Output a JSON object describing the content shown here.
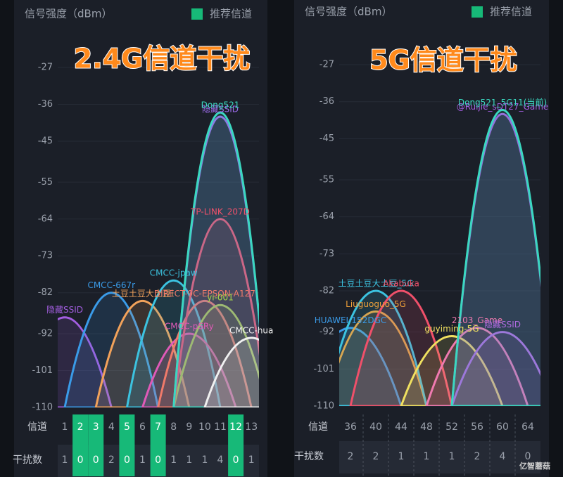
{
  "chart_data": [
    {
      "type": "wifi",
      "header_label": "信号强度（dBm）",
      "legend_label": "推荐信道",
      "legend_color": "#17b978",
      "title": "2.4G信道干扰",
      "ylim": [
        -110,
        -27
      ],
      "yticks": [
        -27,
        -36,
        -45,
        -55,
        -64,
        -73,
        -82,
        -92,
        -101,
        -110
      ],
      "channel_label": "信道",
      "interference_label": "干扰数",
      "channels": [
        1,
        2,
        3,
        4,
        5,
        6,
        7,
        8,
        9,
        10,
        11,
        12,
        13
      ],
      "interference": [
        1,
        0,
        0,
        2,
        0,
        1,
        0,
        1,
        1,
        1,
        4,
        0,
        1
      ],
      "recommended": [
        2,
        3,
        5,
        7,
        12
      ],
      "networks": [
        {
          "name": "隐藏SSID",
          "color": "#a35ee0",
          "channel": 1,
          "signal": -88
        },
        {
          "name": "CMCC-667r",
          "color": "#3a9be8",
          "channel": 4,
          "signal": -82
        },
        {
          "name": "土豆土豆大土豆i",
          "color": "#f2a25a",
          "channel": 6,
          "signal": -84
        },
        {
          "name": "CMCC-jpaw",
          "color": "#3cc3e0",
          "channel": 8,
          "signal": -79
        },
        {
          "name": "CMCC-pSRy",
          "color": "#e05ab8",
          "channel": 9,
          "signal": -92
        },
        {
          "name": "DIRECT-9C-EPSON-A127",
          "color": "#f07a6a",
          "channel": 10,
          "signal": -84
        },
        {
          "name": "yi-001",
          "color": "#a8d84a",
          "channel": 11,
          "signal": -85
        },
        {
          "name": "TP-LINK_207D",
          "color": "#f0506a",
          "channel": 11,
          "signal": -64
        },
        {
          "name": "隐藏SSID",
          "color": "#9a6ae8",
          "channel": 11,
          "signal": -39
        },
        {
          "name": "Dong521",
          "color": "#3ad8c0",
          "channel": 11,
          "signal": -38
        },
        {
          "name": "CMCC-hua",
          "color": "#f0f0f0",
          "channel": 13,
          "signal": -93
        }
      ]
    },
    {
      "type": "wifi",
      "header_label": "信号强度（dBm）",
      "legend_label": "推荐信道",
      "legend_color": "#17b978",
      "title": "5G信道干扰",
      "ylim": [
        -110,
        -27
      ],
      "yticks": [
        -27,
        -36,
        -45,
        -55,
        -64,
        -73,
        -82,
        -92,
        -101,
        -110
      ],
      "channel_label": "信道",
      "interference_label": "干扰数",
      "channels": [
        36,
        40,
        44,
        48,
        52,
        56,
        60,
        64
      ],
      "interference": [
        2,
        2,
        1,
        1,
        1,
        2,
        4,
        0
      ],
      "recommended": [],
      "networks": [
        {
          "name": "HUAWEI-152DGC",
          "color": "#3a9be8",
          "channel": 36,
          "signal": -91
        },
        {
          "name": "Liuguoguo_5G",
          "color": "#f2a23a",
          "channel": 40,
          "signal": -87
        },
        {
          "name": "土豆土豆大土豆_5G",
          "color": "#3cc3e0",
          "channel": 40,
          "signal": -82
        },
        {
          "name": "Akabuka",
          "color": "#f0506a",
          "channel": 44,
          "signal": -82
        },
        {
          "name": "guyiming-5G",
          "color": "#f0e060",
          "channel": 52,
          "signal": -93
        },
        {
          "name": "2103_Game",
          "color": "#f07ab0",
          "channel": 56,
          "signal": -91
        },
        {
          "name": "隐藏SSID",
          "color": "#b06ae0",
          "channel": 60,
          "signal": -92
        },
        {
          "name": "@Ruijie_sDT27_Game",
          "color": "#a35ee0",
          "channel": 60,
          "signal": -39
        },
        {
          "name": "Dong521_5G11(当前)",
          "color": "#3ad8c0",
          "channel": 60,
          "signal": -38
        }
      ]
    }
  ],
  "watermark": "亿智蘑菇"
}
